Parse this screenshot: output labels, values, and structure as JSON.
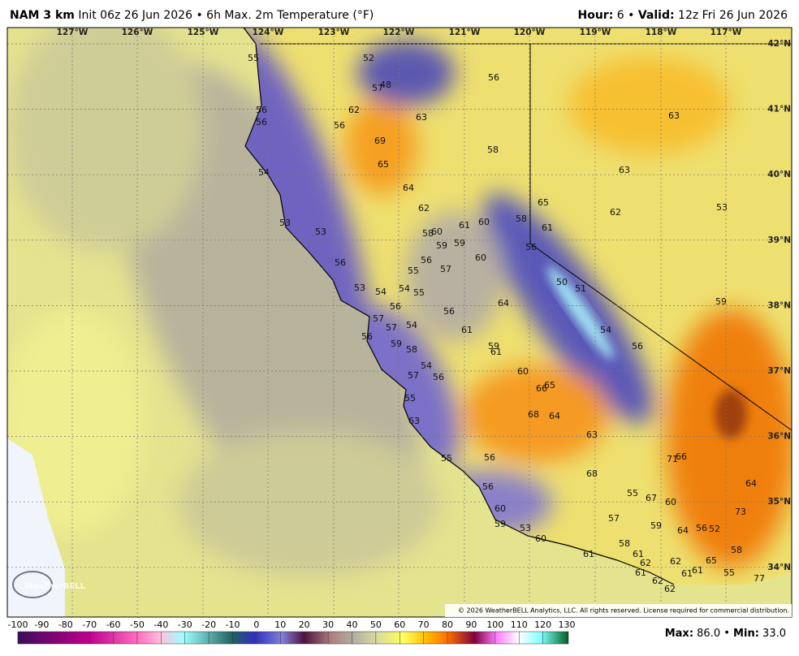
{
  "header": {
    "model": "NAM 3 km",
    "init": "Init 06z 26 Jun 2026",
    "product": "6h Max. 2m Temperature (°F)",
    "hour_label": "Hour:",
    "hour": "6",
    "valid_label": "Valid:",
    "valid": "12z Fri 26 Jun 2026"
  },
  "map": {
    "longitude_labels": [
      "127°W",
      "126°W",
      "125°W",
      "124°W",
      "123°W",
      "122°W",
      "121°W",
      "120°W",
      "119°W",
      "118°W",
      "117°W"
    ],
    "latitude_labels": [
      "42°N",
      "41°N",
      "40°N",
      "39°N",
      "38°N",
      "37°N",
      "36°N",
      "35°N",
      "34°N"
    ],
    "temperature_labels": [
      55,
      52,
      56,
      57,
      48,
      56,
      62,
      63,
      56,
      56,
      63,
      69,
      58,
      65,
      54,
      63,
      64,
      65,
      62,
      62,
      53,
      60,
      61,
      60,
      58,
      61,
      53,
      53,
      58,
      59,
      59,
      56,
      56,
      56,
      60,
      55,
      57,
      50,
      51,
      53,
      54,
      54,
      55,
      64,
      59,
      56,
      56,
      57,
      57,
      54,
      61,
      54,
      56,
      59,
      58,
      56,
      59,
      61,
      54,
      60,
      57,
      56,
      65,
      66,
      55,
      68,
      64,
      63,
      63,
      55,
      56,
      71,
      66,
      68,
      64,
      56,
      55,
      67,
      60,
      60,
      73,
      57,
      59,
      53,
      59,
      64,
      56,
      52,
      60,
      58,
      58,
      61,
      61,
      62,
      62,
      65,
      61,
      61,
      61,
      55,
      77,
      62,
      62
    ],
    "logo": "WeatherBELL",
    "copyright": "© 2026 WeatherBELL Analytics, LLC. All rights reserved. License required for commercial distribution."
  },
  "colorbar": {
    "ticks": [
      -100,
      -90,
      -80,
      -70,
      -60,
      -50,
      -40,
      -30,
      -20,
      -10,
      0,
      10,
      20,
      30,
      40,
      50,
      60,
      70,
      80,
      90,
      100,
      110,
      120,
      130
    ]
  },
  "stats": {
    "max_label": "Max:",
    "max": "86.0",
    "min_label": "Min:",
    "min": "33.0"
  }
}
